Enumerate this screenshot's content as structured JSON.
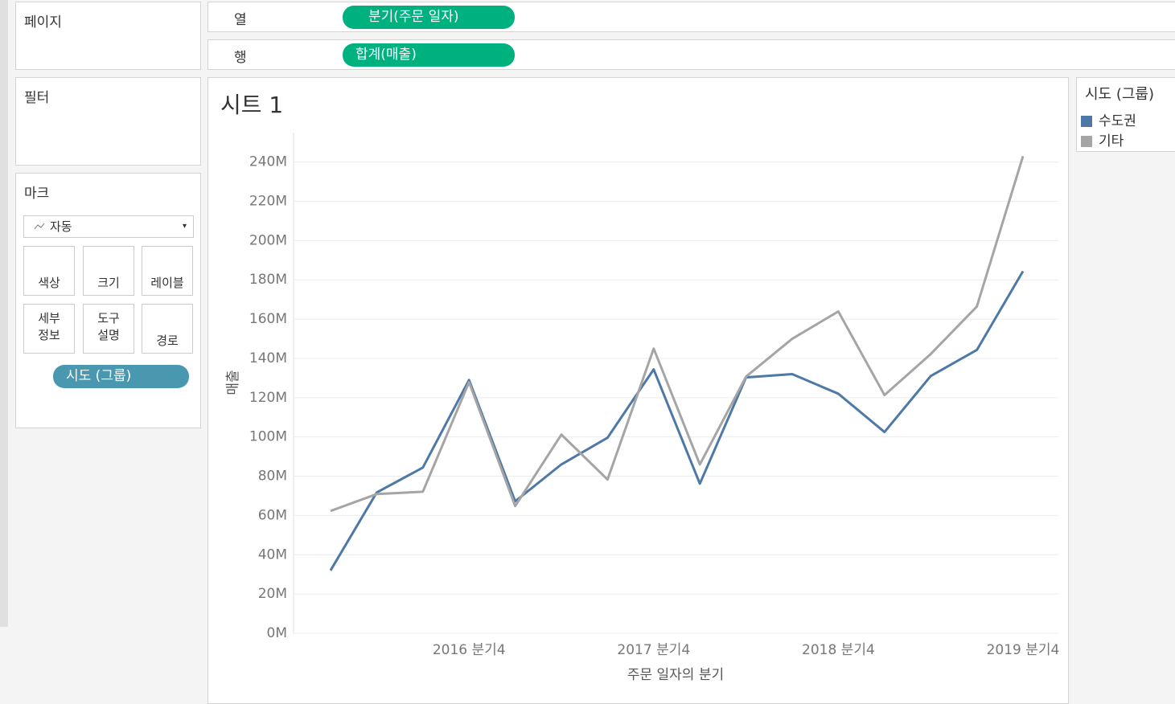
{
  "ui": {
    "pages": "페이지",
    "filters": "필터",
    "marks": "마크",
    "marks_type": "자동",
    "mark_buttons": [
      "색상",
      "크기",
      "레이블",
      "세부\n정보",
      "도구\n설명",
      "경로"
    ],
    "color_pill": "시도 (그룹)",
    "columns_shelf": {
      "label": "열",
      "pill": "분기(주문 일자)"
    },
    "rows_shelf": {
      "label": "행",
      "pill": "합계(매출)"
    }
  },
  "chart_data": {
    "type": "line",
    "title": "시트 1",
    "x_label": "주문 일자의 분기",
    "y_label": "매출",
    "legend_title": "시도 (그룹)",
    "categories": [
      null,
      null,
      null,
      "2016 분기4",
      null,
      null,
      null,
      "2017 분기4",
      null,
      null,
      null,
      "2018 분기4",
      null,
      null,
      null,
      "2019 분기4"
    ],
    "series": [
      {
        "name": "수도권",
        "color": "#4e79a7",
        "values": [
          32,
          71.7,
          84.4,
          129,
          67.2,
          86,
          99.6,
          134.4,
          76.2,
          130.3,
          132,
          122,
          102.5,
          131,
          144.3,
          184.4
        ]
      },
      {
        "name": "기타",
        "color": "#a5a5a5",
        "values": [
          62.3,
          70.9,
          72.1,
          127.9,
          64.8,
          101.2,
          78.3,
          145,
          86,
          130.7,
          150,
          163.9,
          121.3,
          142.2,
          166.4,
          243
        ]
      }
    ],
    "ylim": [
      0,
      255
    ],
    "yticks": [
      {
        "value": 0,
        "label": "0M"
      },
      {
        "value": 20,
        "label": "20M"
      },
      {
        "value": 40,
        "label": "40M"
      },
      {
        "value": 60,
        "label": "60M"
      },
      {
        "value": 80,
        "label": "80M"
      },
      {
        "value": 100,
        "label": "100M"
      },
      {
        "value": 120,
        "label": "120M"
      },
      {
        "value": 140,
        "label": "140M"
      },
      {
        "value": 160,
        "label": "160M"
      },
      {
        "value": 180,
        "label": "180M"
      },
      {
        "value": 200,
        "label": "200M"
      },
      {
        "value": 220,
        "label": "220M"
      },
      {
        "value": 240,
        "label": "240M"
      }
    ],
    "grid": true
  }
}
